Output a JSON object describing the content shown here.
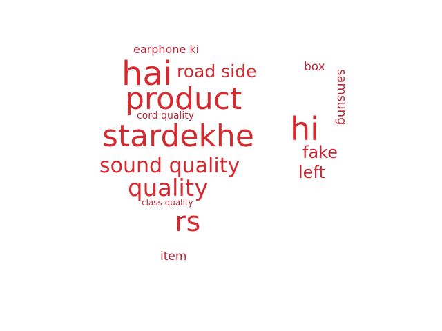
{
  "words": {
    "hai": "hai",
    "road_side": "road side",
    "product": "product",
    "stardekhe": "stardekhe",
    "hi": "hi",
    "sound_quality": "sound quality",
    "quality": "quality",
    "rs": "rs",
    "earphone_ki": "earphone ki",
    "box": "box",
    "samsung": "samsung",
    "cord_quality": "cord quality",
    "fake": "fake",
    "left": "left",
    "class_quality": "class quality",
    "item": "item"
  },
  "colors": {
    "primary_red": "#d42a30",
    "medium_red": "#c62631",
    "dark_red": "#b52a3a",
    "background": "#ffffff"
  }
}
